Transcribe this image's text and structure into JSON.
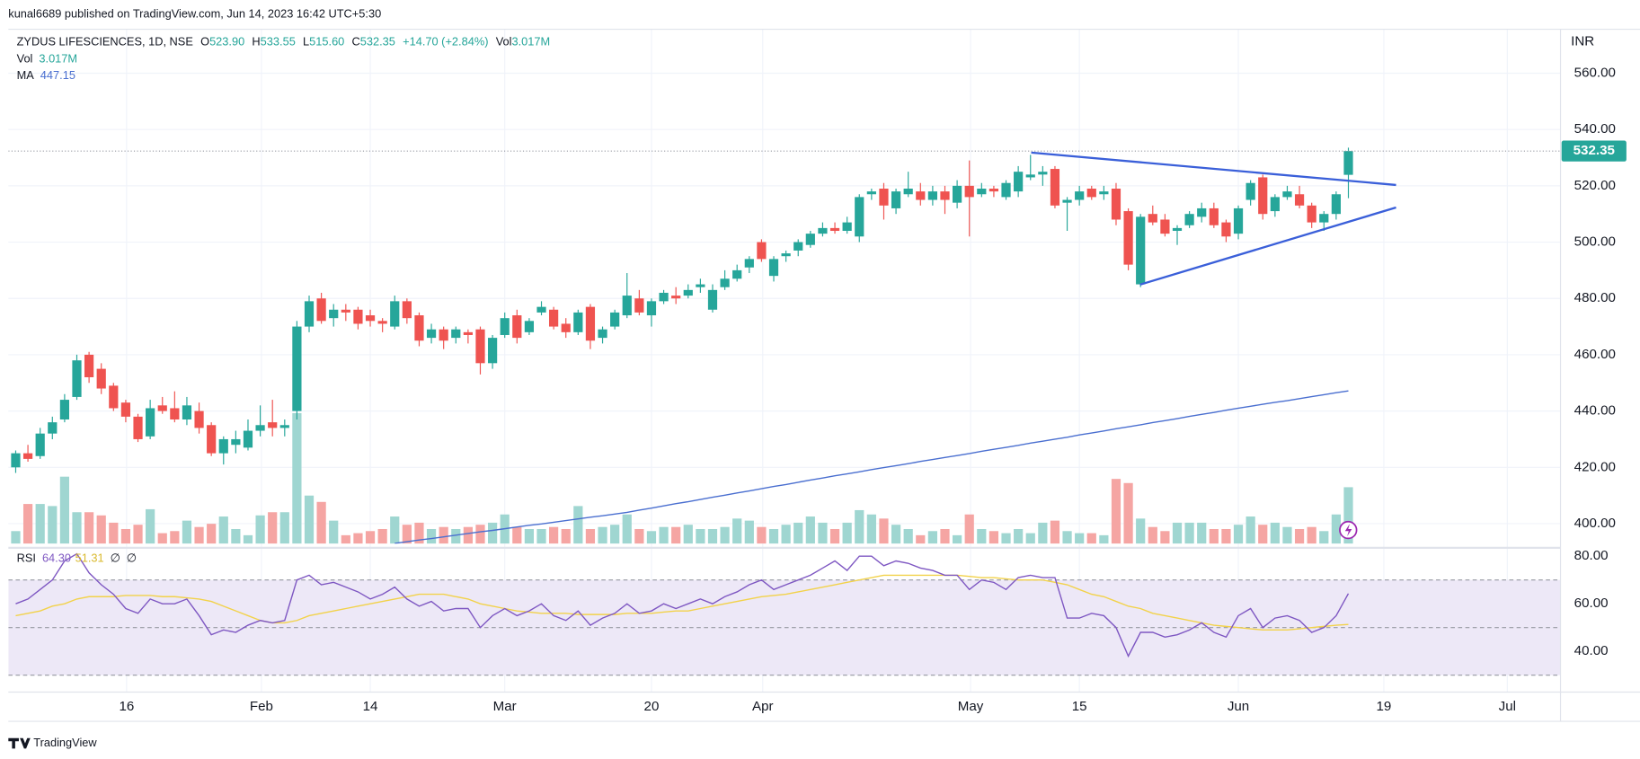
{
  "attribution": "kunal6689 published on TradingView.com, Jun 14, 2023 16:42 UTC+5:30",
  "footer": "TradingView",
  "currency": "INR",
  "header": {
    "symbol": "ZYDUS LIFESCIENCES, 1D, NSE",
    "ohlc": [
      {
        "label": "O",
        "value": "523.90"
      },
      {
        "label": "H",
        "value": "533.55"
      },
      {
        "label": "L",
        "value": "515.60"
      },
      {
        "label": "C",
        "value": "532.35"
      }
    ],
    "change": "+14.70 (+2.84%)",
    "volume_label": "Vol",
    "volume_value": "3.017M"
  },
  "volume_legend": {
    "label": "Vol",
    "value": "3.017M"
  },
  "ma_legend": {
    "label": "MA",
    "value": "447.15"
  },
  "rsi_legend": {
    "label": "RSI",
    "values": [
      "64.30",
      "51.31",
      "∅",
      "∅"
    ]
  },
  "chart_data": {
    "type": "candlestick",
    "xlim": [
      -0.6,
      126.35
    ],
    "xticks": [
      {
        "value": 9.07,
        "label": "16"
      },
      {
        "value": 20.1,
        "label": "Feb"
      },
      {
        "value": 29.0,
        "label": "14"
      },
      {
        "value": 40.0,
        "label": "Mar"
      },
      {
        "value": 52.0,
        "label": "20"
      },
      {
        "value": 61.1,
        "label": "Apr"
      },
      {
        "value": 78.1,
        "label": "May"
      },
      {
        "value": 87.0,
        "label": "15"
      },
      {
        "value": 100.0,
        "label": "Jun"
      },
      {
        "value": 111.9,
        "label": "19"
      },
      {
        "value": 122.0,
        "label": "Jul"
      }
    ],
    "ylim": [
      392.9,
      575.6
    ],
    "yticks": [
      {
        "value": 400,
        "label": "400.00"
      },
      {
        "value": 420,
        "label": "420.00"
      },
      {
        "value": 440,
        "label": "440.00"
      },
      {
        "value": 460,
        "label": "460.00"
      },
      {
        "value": 480,
        "label": "480.00"
      },
      {
        "value": 500,
        "label": "500.00"
      },
      {
        "value": 520,
        "label": "520.00"
      },
      {
        "value": 540,
        "label": "540.00"
      },
      {
        "value": 560,
        "label": "560.00"
      }
    ],
    "grid": true,
    "up_color": "#26a69a",
    "down_color": "#ef5350",
    "volume_up_color": "#9fd6d1",
    "volume_down_color": "#f5a5a3",
    "open": [
      420,
      425,
      424,
      432,
      437,
      445,
      460,
      455,
      449,
      443,
      438,
      431,
      442,
      441,
      437,
      440,
      435,
      425,
      428,
      427,
      433,
      436,
      434,
      440,
      470,
      480,
      473,
      476,
      476,
      474,
      472,
      470,
      479,
      474,
      466,
      469,
      466,
      468,
      469,
      457,
      467,
      474,
      468,
      475,
      476,
      471,
      468,
      477,
      466,
      470,
      474,
      480,
      474,
      479,
      481,
      481,
      484,
      476,
      484,
      487,
      491,
      500,
      488,
      495,
      497,
      499,
      503,
      505,
      504,
      502,
      517,
      519,
      512,
      517,
      518,
      515,
      518,
      514,
      520,
      517,
      519,
      516,
      518,
      523,
      524,
      526,
      514,
      515,
      519,
      517,
      519,
      511,
      485,
      510,
      508,
      504,
      506,
      509,
      512,
      507,
      503,
      515,
      523,
      511,
      516,
      517,
      513,
      507,
      510,
      523.9
    ],
    "high": [
      426,
      428,
      434,
      438,
      446,
      460,
      461,
      457,
      450,
      444,
      439,
      444,
      445,
      447,
      445,
      443,
      436,
      431,
      433,
      437,
      442,
      444,
      437,
      472,
      481,
      482,
      478,
      478,
      477,
      476,
      473,
      481,
      480,
      475,
      471,
      470,
      470,
      469,
      470,
      467,
      475,
      476,
      473,
      479,
      477,
      473,
      476,
      478,
      470,
      476,
      489,
      483,
      480,
      483,
      484,
      485,
      487,
      485,
      490,
      492,
      495,
      501,
      495,
      497,
      501,
      504,
      507,
      507,
      509,
      517,
      519,
      521,
      519,
      525,
      521,
      520,
      520,
      522,
      529,
      521,
      520,
      522,
      527,
      531,
      527,
      527,
      516,
      520,
      520,
      520,
      521,
      512,
      510,
      513,
      510,
      506,
      511,
      514,
      514,
      508,
      513,
      522,
      524,
      517,
      520,
      520,
      514,
      511,
      518,
      533.55
    ],
    "low": [
      418,
      422,
      423,
      430,
      436,
      444,
      450,
      446,
      440,
      436,
      429,
      430,
      439,
      436,
      435,
      432,
      424,
      421,
      425,
      426,
      431,
      431,
      431,
      437,
      468,
      471,
      470,
      472,
      469,
      470,
      468,
      469,
      471,
      463,
      464,
      462,
      464,
      464,
      453,
      455,
      466,
      464,
      467,
      474,
      469,
      466,
      467,
      462,
      464,
      469,
      473,
      474,
      470,
      478,
      478,
      480,
      482,
      475,
      483,
      486,
      489,
      493,
      486,
      493,
      495,
      498,
      502,
      503,
      503,
      500,
      515,
      508,
      510,
      516,
      513,
      513,
      510,
      512,
      502,
      516,
      516,
      515,
      516,
      522,
      520,
      512,
      504,
      513,
      515,
      515,
      506,
      490,
      484,
      506,
      502,
      499,
      505,
      507,
      505,
      500,
      501,
      513,
      508,
      509,
      515,
      512,
      505,
      504,
      508,
      515.6
    ],
    "close": [
      425,
      423,
      432,
      436,
      444,
      458,
      452,
      448,
      441,
      438,
      430,
      441,
      440,
      437,
      442,
      434,
      425,
      430,
      430,
      433,
      435,
      434,
      435,
      470,
      479,
      472,
      476,
      475,
      471,
      472,
      471,
      479,
      473,
      465,
      469,
      465,
      469,
      467,
      457,
      466,
      473,
      466,
      472,
      477,
      470,
      468,
      475,
      465,
      469,
      475,
      481,
      475,
      479,
      482,
      480,
      483,
      485,
      483,
      487,
      490,
      494,
      494,
      494,
      496,
      500,
      503,
      505,
      504,
      507,
      516,
      518,
      513,
      518,
      519,
      515,
      518,
      515,
      520,
      516,
      519,
      518,
      521,
      525,
      524,
      525,
      513,
      515,
      518,
      516,
      518,
      508,
      492,
      509,
      507,
      503,
      505,
      510,
      512,
      506,
      502,
      512,
      521,
      510,
      516,
      518,
      513,
      507,
      510,
      517,
      532.35
    ],
    "volume_lim": [
      0,
      27.5
    ],
    "volume": [
      0.67,
      2.12,
      2.12,
      2.01,
      3.58,
      1.68,
      1.68,
      1.51,
      1.12,
      0.78,
      1.01,
      1.84,
      0.56,
      0.67,
      1.23,
      0.89,
      1.06,
      1.45,
      0.78,
      0.45,
      1.51,
      1.68,
      1.68,
      6.98,
      2.57,
      2.23,
      1.23,
      0.45,
      0.56,
      0.67,
      0.78,
      1.45,
      1.01,
      1.12,
      0.78,
      0.89,
      0.78,
      0.89,
      1.01,
      1.12,
      1.56,
      0.89,
      0.78,
      0.78,
      0.89,
      0.78,
      2.01,
      0.78,
      0.89,
      1.01,
      1.56,
      0.78,
      0.67,
      0.89,
      0.89,
      1.01,
      0.78,
      0.78,
      0.89,
      1.34,
      1.23,
      0.89,
      0.78,
      1.01,
      1.12,
      1.45,
      1.12,
      0.78,
      1.12,
      1.79,
      1.56,
      1.34,
      1.01,
      0.78,
      0.45,
      0.67,
      0.78,
      0.45,
      1.56,
      0.78,
      0.67,
      0.56,
      0.78,
      0.56,
      1.12,
      1.23,
      0.67,
      0.56,
      0.56,
      0.45,
      3.46,
      3.24,
      1.34,
      0.89,
      0.67,
      1.12,
      1.12,
      1.12,
      0.78,
      0.78,
      1.01,
      1.45,
      1.01,
      1.12,
      0.89,
      0.78,
      0.89,
      0.67,
      1.56,
      3.017
    ],
    "ma": {
      "color": "#4a6fd0",
      "values": [
        null,
        null,
        null,
        null,
        null,
        null,
        null,
        null,
        null,
        null,
        null,
        null,
        null,
        null,
        null,
        null,
        null,
        null,
        null,
        null,
        null,
        null,
        null,
        null,
        null,
        null,
        null,
        null,
        null,
        null,
        null,
        393.0,
        393.6,
        394.2,
        394.7,
        395.3,
        395.9,
        396.5,
        397.1,
        397.6,
        398.2,
        398.8,
        399.4,
        399.9,
        400.5,
        401.1,
        401.7,
        402.3,
        402.8,
        403.4,
        404.0,
        404.8,
        405.5,
        406.3,
        407.1,
        407.8,
        408.6,
        409.4,
        410.1,
        410.9,
        411.6,
        412.4,
        413.2,
        413.9,
        414.7,
        415.5,
        416.2,
        417.0,
        417.7,
        418.4,
        419.2,
        419.9,
        420.6,
        421.3,
        422.1,
        422.8,
        423.5,
        424.2,
        424.9,
        425.7,
        426.4,
        427.1,
        427.8,
        428.6,
        429.3,
        430.0,
        430.7,
        431.5,
        432.2,
        432.9,
        433.7,
        434.4,
        435.1,
        435.9,
        436.6,
        437.3,
        438.1,
        438.8,
        439.5,
        440.3,
        441.0,
        441.7,
        442.4,
        443.1,
        443.7,
        444.4,
        445.1,
        445.8,
        446.5,
        447.15
      ]
    },
    "trendlines": {
      "color": "#3a5fd9",
      "lines": [
        {
          "x": [
            83.06,
            112.9
          ],
          "y": [
            531.8,
            520.3
          ]
        },
        {
          "x": [
            91.96,
            112.9
          ],
          "y": [
            484.9,
            512.3
          ]
        }
      ]
    },
    "rsi": {
      "ylim": [
        22.9,
        82.2
      ],
      "yticks": [
        {
          "value": 40,
          "label": "40.00"
        },
        {
          "value": 60,
          "label": "60.00"
        },
        {
          "value": 80,
          "label": "80.00"
        }
      ],
      "bands": [
        30,
        50,
        70
      ],
      "band_color": "#ede8f7",
      "color": "#7e57c2",
      "values": [
        60,
        62,
        66,
        70,
        78,
        81,
        73,
        68,
        64,
        58,
        56,
        62,
        60,
        60,
        62,
        55,
        47,
        49,
        48,
        51,
        53,
        52,
        53,
        70,
        72,
        68,
        69,
        67,
        65,
        62,
        64,
        67,
        62,
        59,
        61,
        57,
        58,
        58,
        50,
        55,
        58,
        55,
        57,
        60,
        55,
        53,
        57,
        51,
        54,
        56,
        60,
        56,
        57,
        60,
        58,
        60,
        62,
        60,
        63,
        65,
        68,
        70,
        66,
        68,
        70,
        72,
        75,
        78,
        74,
        80,
        80,
        76,
        78,
        77,
        75,
        74,
        72,
        72,
        66,
        70,
        69,
        66,
        71,
        72,
        71,
        71,
        54,
        54,
        56,
        55,
        50,
        38,
        48,
        48,
        46,
        47,
        49,
        52,
        48,
        46,
        55,
        58,
        50,
        54,
        55,
        53,
        48,
        50,
        55,
        64.3
      ],
      "ma_color": "#f2d24a",
      "ma_values": [
        55,
        56,
        57,
        59,
        60,
        62,
        63,
        63,
        63,
        63.5,
        63.5,
        63.5,
        63,
        63,
        62.5,
        62,
        61,
        59,
        57,
        55,
        53,
        52,
        52,
        53,
        55,
        56,
        57,
        58,
        59,
        60,
        61,
        62,
        63,
        64,
        64,
        64,
        63,
        62,
        60,
        59,
        58,
        57,
        56.5,
        56,
        56,
        56,
        55.5,
        55.5,
        55.5,
        55.5,
        56,
        56,
        56,
        56.5,
        57,
        57,
        58,
        59,
        60,
        61,
        62,
        63,
        63.5,
        64,
        65,
        66,
        67,
        68,
        69,
        70,
        71,
        72,
        72,
        72,
        72,
        72,
        72,
        72,
        71.5,
        71,
        71,
        70.5,
        70,
        70,
        70,
        69,
        68,
        66,
        64,
        63,
        61,
        59,
        58,
        56,
        55,
        54,
        53,
        52,
        51,
        50.5,
        50,
        49.5,
        49,
        49,
        49,
        49.5,
        50,
        50.5,
        51,
        51.31
      ]
    }
  }
}
